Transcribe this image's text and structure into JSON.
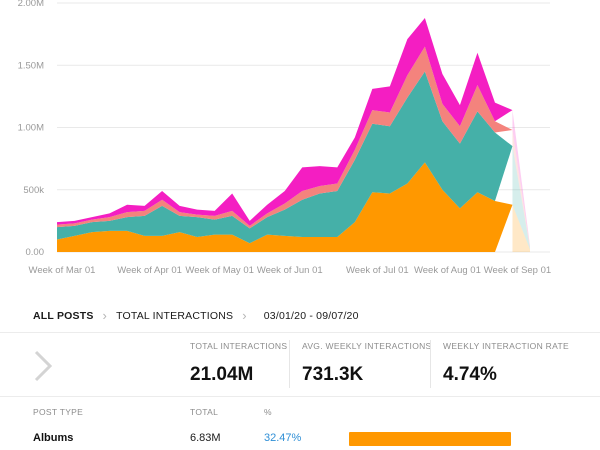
{
  "chart_data": {
    "type": "area",
    "stacked": true,
    "y_ticks": [
      "0.00",
      "500k",
      "1.00M",
      "1.50M",
      "2.00M"
    ],
    "ylim": [
      0,
      2000000
    ],
    "x_labels": [
      "Week of Mar 01",
      "Week of Apr 01",
      "Week of May 01",
      "Week of Jun 01",
      "Week of Jul 01",
      "Week of Aug 01",
      "Week of Sep 01"
    ],
    "x": [
      "03/01",
      "03/08",
      "03/15",
      "03/22",
      "03/29",
      "04/05",
      "04/12",
      "04/19",
      "04/26",
      "05/03",
      "05/10",
      "05/17",
      "05/24",
      "05/31",
      "06/07",
      "06/14",
      "06/21",
      "06/28",
      "07/05",
      "07/12",
      "07/19",
      "07/26",
      "08/02",
      "08/09",
      "08/16",
      "08/23",
      "08/30",
      "09/06"
    ],
    "series": [
      {
        "color": "#ff9800",
        "values": [
          100000,
          130000,
          160000,
          170000,
          170000,
          130000,
          130000,
          160000,
          120000,
          140000,
          140000,
          70000,
          140000,
          130000,
          120000,
          120000,
          120000,
          240000,
          480000,
          470000,
          550000,
          720000,
          500000,
          350000,
          480000,
          410000,
          380000,
          20000
        ]
      },
      {
        "color": "#45b0a8",
        "values": [
          100000,
          80000,
          80000,
          80000,
          110000,
          160000,
          240000,
          130000,
          160000,
          120000,
          150000,
          120000,
          140000,
          210000,
          300000,
          350000,
          370000,
          500000,
          550000,
          540000,
          690000,
          730000,
          550000,
          520000,
          650000,
          550000,
          470000,
          10000
        ]
      },
      {
        "color": "#f4837d",
        "values": [
          20000,
          20000,
          20000,
          30000,
          40000,
          40000,
          50000,
          30000,
          20000,
          30000,
          40000,
          20000,
          30000,
          50000,
          70000,
          60000,
          60000,
          80000,
          110000,
          110000,
          180000,
          200000,
          140000,
          140000,
          210000,
          90000,
          130000,
          10000
        ]
      },
      {
        "color": "#f41ec2",
        "values": [
          20000,
          20000,
          20000,
          30000,
          60000,
          40000,
          70000,
          50000,
          40000,
          40000,
          140000,
          40000,
          70000,
          100000,
          190000,
          160000,
          130000,
          100000,
          170000,
          210000,
          290000,
          230000,
          240000,
          170000,
          260000,
          150000,
          160000,
          10000
        ]
      }
    ]
  },
  "breadcrumb": {
    "all_posts": "ALL POSTS",
    "total_interactions": "TOTAL INTERACTIONS",
    "date_range": "03/01/20 - 09/07/20"
  },
  "stats": [
    {
      "label": "TOTAL INTERACTIONS",
      "value": "21.04M"
    },
    {
      "label": "AVG. WEEKLY INTERACTIONS",
      "value": "731.3K"
    },
    {
      "label": "WEEKLY INTERACTION RATE",
      "value": "4.74%"
    }
  ],
  "table": {
    "headers": [
      "POST TYPE",
      "TOTAL",
      "%"
    ],
    "rows": [
      {
        "type": "Albums",
        "total": "6.83M",
        "percent": "32.47%",
        "share": 0.3247,
        "color": "#ff9800"
      }
    ]
  }
}
